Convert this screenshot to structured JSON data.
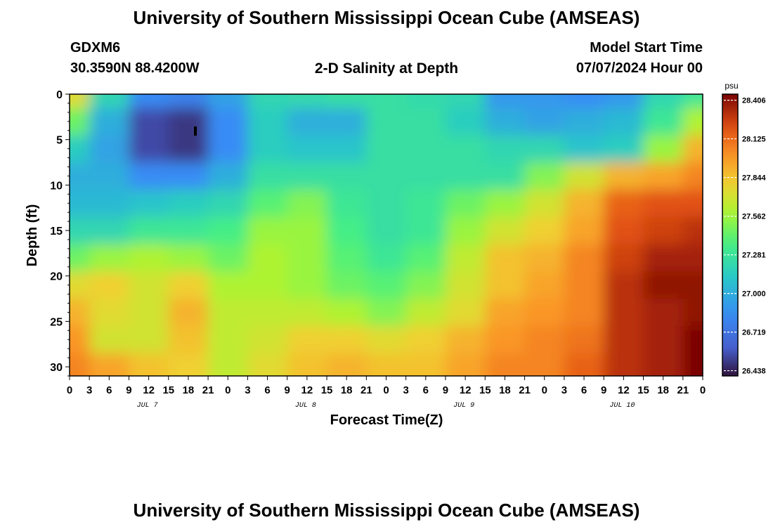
{
  "header": {
    "title": "University of Southern Mississippi Ocean Cube (AMSEAS)",
    "station_id": "GDXM6",
    "location": "30.3590N  88.4200W",
    "plot_title": "2-D Salinity at Depth",
    "model_start_label": "Model Start Time",
    "model_start_value": "07/07/2024 Hour 00"
  },
  "footer": {
    "title": "University of Southern Mississippi Ocean Cube (AMSEAS)"
  },
  "chart_data": {
    "type": "heatmap",
    "title": "2-D Salinity at Depth",
    "xlabel": "Forecast Time(Z)",
    "ylabel": "Depth (ft)",
    "x_tick_labels": [
      "0",
      "3",
      "6",
      "9",
      "12",
      "15",
      "18",
      "21",
      "0",
      "3",
      "6",
      "9",
      "12",
      "15",
      "18",
      "21",
      "0",
      "3",
      "6",
      "9",
      "12",
      "15",
      "18",
      "21",
      "0",
      "3",
      "6",
      "9",
      "12",
      "15",
      "18",
      "21",
      "0"
    ],
    "x_date_labels": [
      "JUL 7",
      "JUL 8",
      "JUL 9",
      "JUL 10"
    ],
    "x_range_hours": [
      0,
      96
    ],
    "y_tick_labels": [
      "0",
      "5",
      "10",
      "15",
      "20",
      "25",
      "30"
    ],
    "y_range_ft": [
      0,
      31
    ],
    "colorbar": {
      "unit": "psu",
      "ticks": [
        "28.406",
        "28.125",
        "27.844",
        "27.562",
        "27.281",
        "27.000",
        "26.719",
        "26.438"
      ],
      "min": 26.4,
      "max": 28.45
    },
    "depths_ft": [
      0,
      3,
      6,
      9,
      12,
      15,
      18,
      21,
      24,
      27,
      30
    ],
    "times_h": [
      0,
      6,
      12,
      18,
      24,
      30,
      36,
      42,
      48,
      54,
      60,
      66,
      72,
      78,
      84,
      90,
      96
    ],
    "salinity_psu": [
      [
        27.75,
        27.2,
        26.85,
        26.8,
        26.95,
        27.2,
        27.22,
        27.25,
        27.25,
        27.22,
        27.2,
        26.9,
        26.9,
        26.85,
        26.9,
        27.2,
        27.3
      ],
      [
        27.45,
        27.0,
        26.55,
        26.5,
        26.85,
        27.15,
        27.0,
        27.0,
        27.25,
        27.25,
        27.15,
        27.0,
        26.95,
        27.0,
        27.05,
        27.3,
        27.6
      ],
      [
        27.15,
        26.95,
        26.55,
        26.5,
        26.85,
        27.15,
        27.1,
        27.1,
        27.25,
        27.25,
        27.25,
        27.2,
        27.2,
        27.1,
        27.15,
        27.55,
        27.9
      ],
      [
        27.0,
        27.0,
        26.85,
        26.85,
        27.0,
        27.25,
        27.25,
        27.25,
        27.25,
        27.25,
        27.25,
        27.25,
        27.5,
        27.7,
        27.9,
        27.95,
        28.05
      ],
      [
        27.05,
        27.05,
        27.1,
        27.15,
        27.2,
        27.4,
        27.5,
        27.3,
        27.25,
        27.3,
        27.45,
        27.55,
        27.7,
        27.9,
        28.15,
        28.2,
        28.2
      ],
      [
        27.2,
        27.2,
        27.3,
        27.3,
        27.35,
        27.55,
        27.55,
        27.35,
        27.25,
        27.3,
        27.55,
        27.7,
        27.8,
        27.95,
        28.2,
        28.25,
        28.3
      ],
      [
        27.45,
        27.55,
        27.6,
        27.55,
        27.45,
        27.6,
        27.55,
        27.4,
        27.3,
        27.4,
        27.65,
        27.85,
        27.9,
        28.05,
        28.25,
        28.35,
        28.35
      ],
      [
        27.75,
        27.8,
        27.7,
        27.8,
        27.6,
        27.6,
        27.55,
        27.45,
        27.4,
        27.5,
        27.7,
        27.85,
        27.95,
        28.05,
        28.3,
        28.4,
        28.4
      ],
      [
        27.9,
        27.75,
        27.7,
        27.9,
        27.65,
        27.65,
        27.65,
        27.6,
        27.5,
        27.65,
        27.75,
        27.95,
        28.0,
        28.05,
        28.3,
        28.35,
        28.4
      ],
      [
        28.0,
        27.7,
        27.7,
        27.85,
        27.65,
        27.7,
        27.8,
        27.8,
        27.75,
        27.8,
        27.9,
        28.0,
        28.05,
        28.1,
        28.3,
        28.35,
        28.45
      ],
      [
        28.05,
        27.95,
        27.85,
        27.8,
        27.65,
        27.75,
        27.85,
        27.9,
        27.85,
        27.85,
        27.95,
        28.05,
        28.05,
        28.15,
        28.3,
        28.35,
        28.45
      ]
    ]
  }
}
